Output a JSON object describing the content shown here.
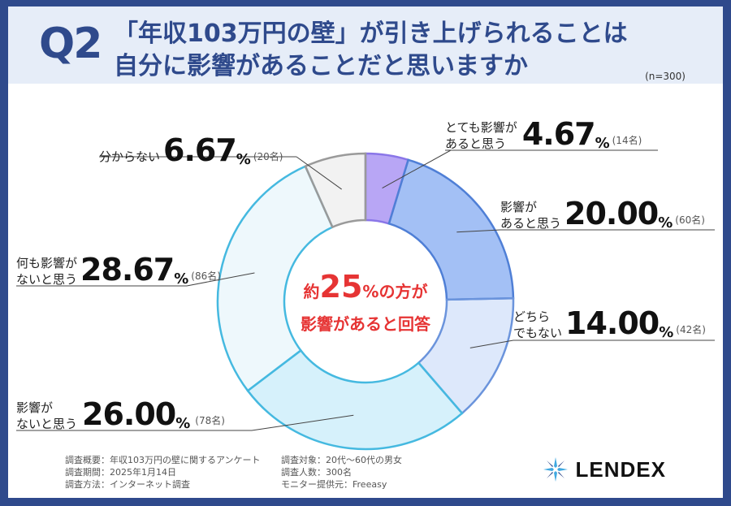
{
  "header": {
    "q_label": "Q2",
    "question_line1": "「年収103万円の壁」が引き上げられることは",
    "question_line2": "自分に影響があることだと思いますか",
    "sample": "(n=300)"
  },
  "center": {
    "prefix": "約",
    "number": "25",
    "suffix": "%の方が",
    "line2": "影響があると回答"
  },
  "chart_data": {
    "type": "pie",
    "unit": "%",
    "slices": [
      {
        "label_line1": "とても影響が",
        "label_line2": "あると思う",
        "value": "4.67",
        "count": "(14名)",
        "color": "#b8a6f5"
      },
      {
        "label_line1": "影響が",
        "label_line2": "あると思う",
        "value": "20.00",
        "count": "(60名)",
        "color": "#a3c0f5"
      },
      {
        "label_line1": "どちら",
        "label_line2": "でもない",
        "value": "14.00",
        "count": "(42名)",
        "color": "#dde8fb"
      },
      {
        "label_line1": "影響が",
        "label_line2": "ないと思う",
        "value": "26.00",
        "count": "(78名)",
        "color": "#d6f1fb"
      },
      {
        "label_line1": "何も影響が",
        "label_line2": "ないと思う",
        "value": "28.67",
        "count": "(86名)",
        "color": "#eef8fc"
      },
      {
        "label_line1": "分からない",
        "label_line2": "",
        "value": "6.67",
        "count": "(20名)",
        "color": "#f2f2f2"
      }
    ]
  },
  "footer": {
    "left": [
      "調査概要：年収103万円の壁に関するアンケート",
      "調査期間：2025年1月14日",
      "調査方法：インターネット調査"
    ],
    "right": [
      "調査対象：20代〜60代の男女",
      "調査人数：300名",
      "モニター提供元：Freeasy"
    ]
  },
  "logo": {
    "text": "LENDEX",
    "icon": "sparkle-logo-icon",
    "accent": "#3fa8e0"
  }
}
